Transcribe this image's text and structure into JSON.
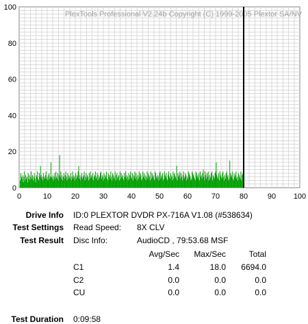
{
  "chart_data": {
    "type": "bar",
    "watermark": "PlexTools Professional V2.24b Copyright (C) 1999-2005 Plextor SA/NV",
    "xlim": [
      0,
      100
    ],
    "ylim": [
      0,
      100
    ],
    "x_ticks": [
      0,
      10,
      20,
      30,
      40,
      50,
      60,
      70,
      80,
      90,
      100
    ],
    "y_ticks": [
      0,
      20,
      40,
      60,
      80,
      100
    ],
    "grid": true,
    "disc_end_marker": 80,
    "bar_color": "#00a000",
    "marker_color": "#000000",
    "series": [
      {
        "values": [
          4,
          8,
          6,
          5,
          7,
          3,
          6,
          9,
          4,
          7,
          5,
          6,
          3,
          8,
          5,
          7,
          4,
          6,
          9,
          5,
          7,
          4,
          6,
          8,
          5,
          3,
          7,
          6,
          9,
          5,
          4,
          8,
          6,
          12,
          7,
          5,
          6,
          4,
          8,
          6,
          5,
          7,
          9,
          5,
          6,
          4,
          7,
          8,
          5,
          6,
          14,
          6,
          5,
          7,
          4,
          6,
          8,
          5,
          9,
          6,
          5,
          8,
          4,
          7,
          18,
          6,
          9,
          5,
          7,
          4,
          6,
          8,
          5,
          7,
          9,
          6,
          4,
          8,
          5,
          7,
          6,
          5,
          8,
          4,
          6,
          9,
          5,
          7,
          6,
          4,
          8,
          5,
          7,
          6,
          9,
          12,
          5,
          7,
          4,
          6,
          8,
          5,
          6,
          7,
          9,
          4,
          6,
          8,
          5,
          7,
          6,
          4,
          8,
          5,
          9,
          6,
          7,
          5,
          8,
          4,
          6,
          7,
          9,
          5,
          6,
          8,
          4,
          7,
          5,
          6,
          8,
          9,
          5,
          7,
          6,
          4,
          8,
          5,
          7,
          6,
          9,
          5,
          4,
          8,
          6,
          7,
          5,
          9,
          6,
          4,
          8,
          7,
          5,
          6,
          9,
          4,
          7,
          8,
          5,
          6,
          7,
          4,
          9,
          5,
          8,
          6,
          7,
          5,
          4,
          8,
          6,
          9,
          5,
          7,
          6,
          4,
          8,
          5,
          7,
          9,
          6,
          5,
          8,
          4,
          7,
          6,
          9,
          5,
          8,
          6,
          4,
          7,
          5,
          9,
          6,
          8,
          7,
          4,
          5,
          9,
          6,
          8,
          5,
          7,
          4,
          6,
          9,
          5,
          8,
          7,
          6,
          4,
          9,
          5,
          8,
          6,
          7,
          5,
          4,
          9,
          8,
          6,
          5,
          7,
          6,
          4,
          8,
          9,
          5,
          7,
          6,
          8,
          4,
          5,
          9,
          7,
          6,
          8,
          5,
          4,
          7,
          9,
          6,
          5,
          8,
          7,
          6,
          4,
          9,
          5,
          8,
          7,
          6,
          5,
          12,
          4,
          8,
          6,
          7,
          9,
          5,
          8,
          6,
          4,
          7,
          9,
          5,
          6,
          8,
          7,
          4,
          6,
          5,
          9,
          8,
          7,
          6,
          4,
          5,
          9,
          8,
          7,
          6,
          5,
          4,
          9,
          8,
          6,
          7,
          5,
          8,
          4,
          9,
          6,
          7,
          5,
          8,
          10,
          6,
          4,
          9,
          7,
          5,
          8,
          6,
          9,
          4,
          7,
          5,
          6,
          8,
          9,
          4,
          7,
          6,
          5,
          8,
          9,
          14,
          7,
          6,
          5,
          8,
          4,
          9,
          7,
          6,
          5,
          8,
          9,
          6,
          4,
          7,
          5,
          8,
          9,
          6,
          7,
          4,
          5,
          15,
          8,
          6,
          7,
          9,
          5,
          4,
          8,
          6,
          7,
          9,
          5,
          6,
          4,
          8,
          7,
          6,
          5,
          9,
          4,
          7,
          8,
          6
        ]
      }
    ]
  },
  "report": {
    "drive_info_label": "Drive Info",
    "drive_info_value": "ID:0 PLEXTOR DVDR  PX-716A  V1.08 (#538634)",
    "test_settings_label": "Test Settings",
    "read_speed_label": "Read Speed:",
    "read_speed_value": "8X CLV",
    "test_result_label": "Test Result",
    "disc_info_label": "Disc Info:",
    "disc_info_value": "AudioCD , 79:53.68 MSF",
    "table": {
      "headers": [
        "Avg/Sec",
        "Max/Sec",
        "Total"
      ],
      "rows": [
        {
          "name": "C1",
          "avg": "1.4",
          "max": "18.0",
          "total": "6694.0"
        },
        {
          "name": "C2",
          "avg": "0.0",
          "max": "0.0",
          "total": "0.0"
        },
        {
          "name": "CU",
          "avg": "0.0",
          "max": "0.0",
          "total": "0.0"
        }
      ]
    },
    "test_duration_label": "Test Duration",
    "test_duration_value": "0:09:58"
  }
}
